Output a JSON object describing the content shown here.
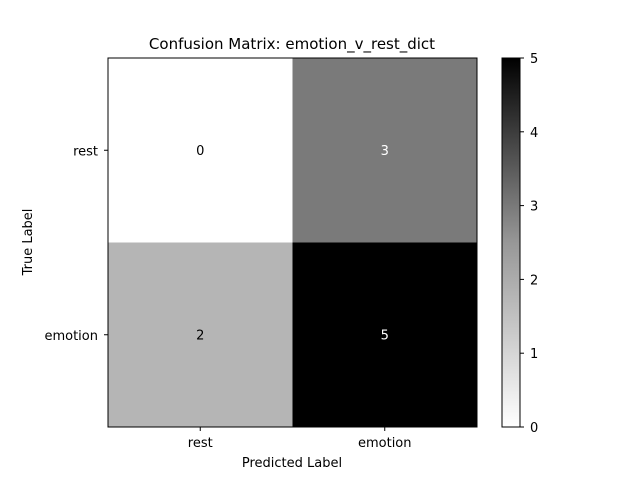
{
  "chart_data": {
    "type": "heatmap",
    "title": "Confusion Matrix: emotion_v_rest_dict",
    "xlabel": "Predicted Label",
    "ylabel": "True Label",
    "x_categories": [
      "rest",
      "emotion"
    ],
    "y_categories": [
      "rest",
      "emotion"
    ],
    "values": [
      [
        0,
        3
      ],
      [
        2,
        5
      ]
    ],
    "colormap": "Greys",
    "colorbar": {
      "min": 0,
      "max": 5,
      "ticks": [
        0,
        1,
        2,
        3,
        4,
        5
      ],
      "tick_labels": [
        "0",
        "1",
        "2",
        "3",
        "4",
        "5"
      ]
    },
    "grid": false
  }
}
